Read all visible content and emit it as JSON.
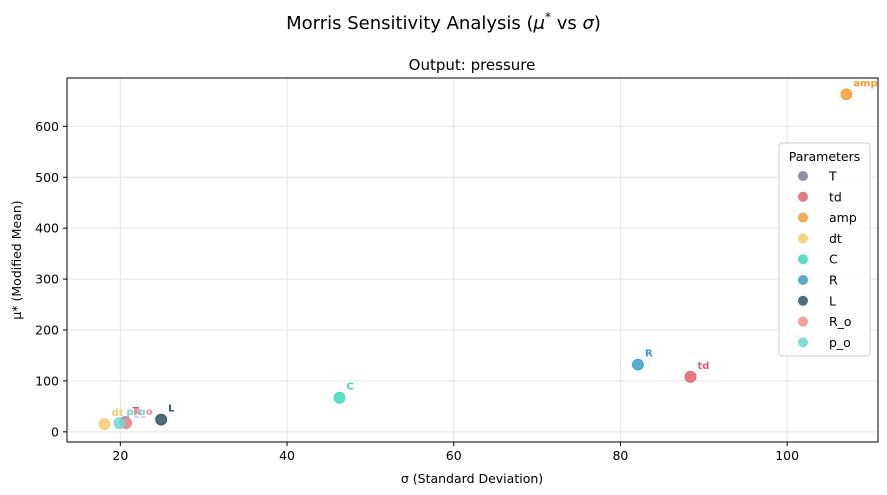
{
  "chart_data": {
    "type": "scatter",
    "suptitle_prefix": "Morris Sensitivity Analysis (",
    "suptitle_mu": "μ",
    "suptitle_star": "*",
    "suptitle_vs": " vs ",
    "suptitle_sigma": "σ",
    "suptitle_suffix": ")",
    "title": "Output: pressure",
    "xlabel": "σ (Standard Deviation)",
    "ylabel": "μ* (Modified Mean)",
    "xlim": [
      13.6,
      110.9
    ],
    "ylim": [
      -20,
      695
    ],
    "xticks": [
      20,
      40,
      60,
      80,
      100
    ],
    "yticks": [
      0,
      100,
      200,
      300,
      400,
      500,
      600
    ],
    "grid": true,
    "legend": {
      "title": "Parameters",
      "placement": "center-right"
    },
    "series": [
      {
        "name": "T",
        "x": 20.6,
        "y": 19,
        "color": "#7f7a8f"
      },
      {
        "name": "td",
        "x": 88.4,
        "y": 108,
        "color": "#e4606d"
      },
      {
        "name": "amp",
        "x": 107.1,
        "y": 663,
        "color": "#f39c34"
      },
      {
        "name": "dt",
        "x": 18.1,
        "y": 15,
        "color": "#f8cb6f"
      },
      {
        "name": "C",
        "x": 46.3,
        "y": 67,
        "color": "#3fdbb9"
      },
      {
        "name": "R",
        "x": 82.1,
        "y": 132,
        "color": "#3d9fc1"
      },
      {
        "name": "L",
        "x": 24.9,
        "y": 24,
        "color": "#2e5266"
      },
      {
        "name": "R_o",
        "x": 20.7,
        "y": 17,
        "color": "#f48d92"
      },
      {
        "name": "p_o",
        "x": 19.9,
        "y": 17,
        "color": "#6ed8cc"
      }
    ]
  }
}
